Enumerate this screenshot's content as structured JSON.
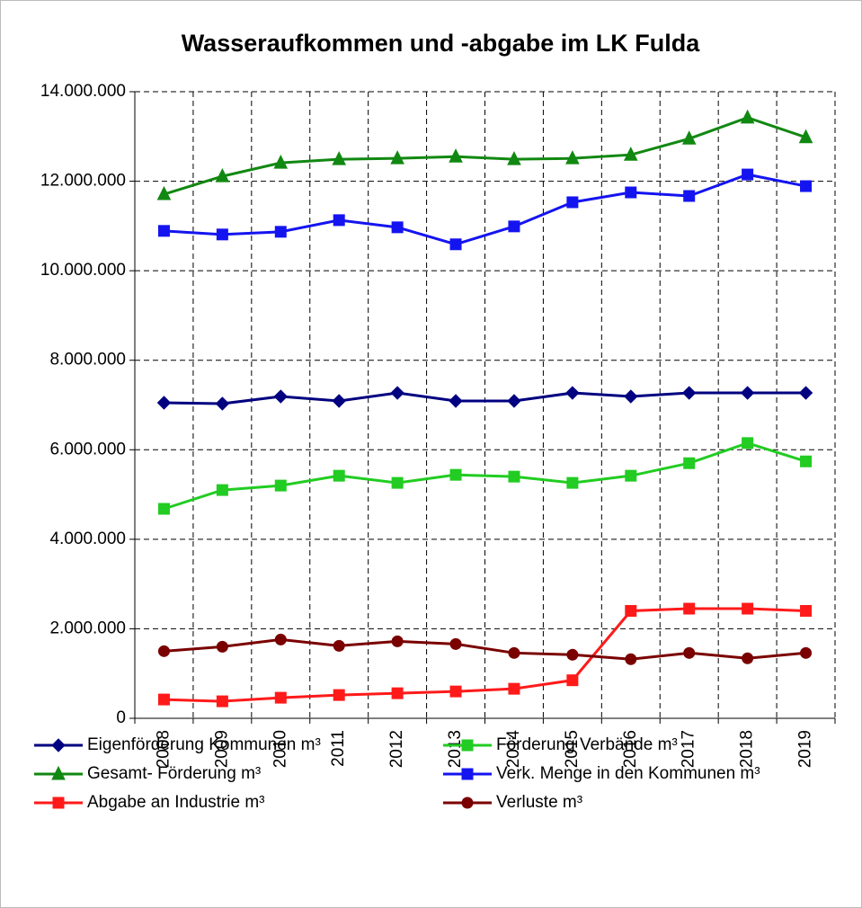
{
  "chart_data": {
    "type": "line",
    "title": "Wasseraufkommen und -abgabe im LK Fulda",
    "categories": [
      "2008",
      "2009",
      "2010",
      "2011",
      "2012",
      "2013",
      "2014",
      "2015",
      "2016",
      "2017",
      "2018",
      "2019"
    ],
    "ylim": [
      0,
      14000000
    ],
    "yticks": [
      0,
      {
        "value": 2000000,
        "label": "2.000.000"
      },
      {
        "value": 4000000,
        "label": "4.000.000"
      },
      {
        "value": 6000000,
        "label": "6.000.000"
      },
      {
        "value": 8000000,
        "label": "8.000.000"
      },
      {
        "value": 10000000,
        "label": "10.000.000"
      },
      {
        "value": 12000000,
        "label": "12.000.000"
      },
      {
        "value": 14000000,
        "label": "14.000.000"
      }
    ],
    "grid": true,
    "series": [
      {
        "name": "Eigenförderung Kommunen m³",
        "color": "#000080",
        "marker": "diamond",
        "values": [
          7050000,
          7030000,
          7190000,
          7090000,
          7270000,
          7090000,
          7090000,
          7270000,
          7190000,
          7270000,
          7270000,
          7270000
        ]
      },
      {
        "name": "Förderung Verbände m³",
        "color": "#22cc22",
        "marker": "square",
        "values": [
          4680000,
          5100000,
          5200000,
          5420000,
          5260000,
          5440000,
          5400000,
          5260000,
          5420000,
          5700000,
          6150000,
          5740000
        ]
      },
      {
        "name": "Gesamt- Förderung m³",
        "color": "#118811",
        "marker": "triangle",
        "values": [
          11710000,
          12110000,
          12410000,
          12490000,
          12510000,
          12550000,
          12490000,
          12510000,
          12590000,
          12950000,
          13420000,
          12980000
        ]
      },
      {
        "name": "Verk. Menge in den Kommunen m³",
        "color": "#1414f0",
        "marker": "square",
        "values": [
          10890000,
          10810000,
          10870000,
          11130000,
          10970000,
          10590000,
          10990000,
          11530000,
          11750000,
          11670000,
          12150000,
          11890000
        ]
      },
      {
        "name": "Abgabe an Industrie m³",
        "color": "#ff1a1a",
        "marker": "square",
        "values": [
          420000,
          380000,
          460000,
          520000,
          560000,
          600000,
          660000,
          850000,
          2400000,
          2450000,
          2450000,
          2400000
        ]
      },
      {
        "name": "Verluste m³",
        "color": "#7a0000",
        "marker": "circle",
        "values": [
          1500000,
          1600000,
          1760000,
          1620000,
          1720000,
          1660000,
          1460000,
          1420000,
          1320000,
          1460000,
          1340000,
          1460000
        ]
      }
    ]
  }
}
